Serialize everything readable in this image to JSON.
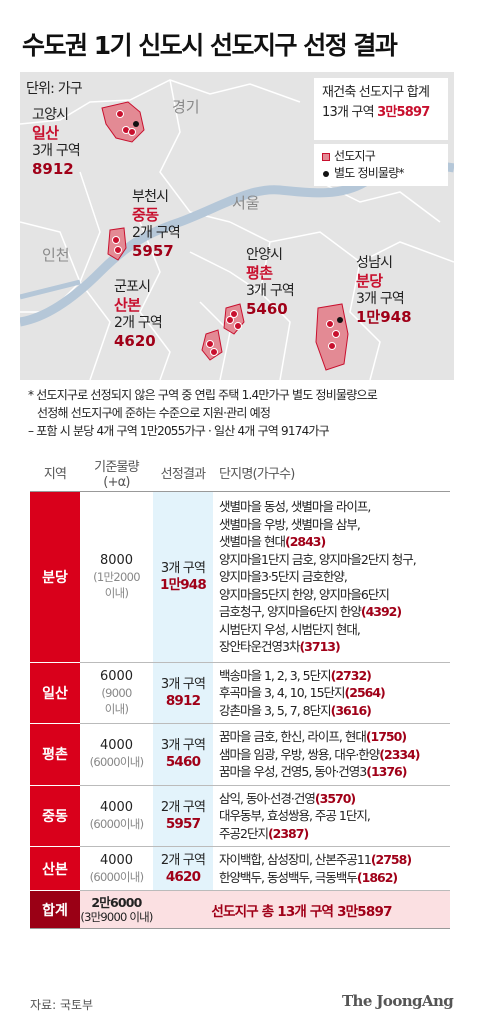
{
  "title": "수도권 1기 신도시 선도지구 선정 결과",
  "map": {
    "unit": "단위: 가구",
    "region_labels": {
      "gyeonggi": "경기",
      "seoul": "서울",
      "incheon": "인천"
    },
    "total_box": {
      "line1": "재건축 선도지구 합계",
      "line2_prefix": "13개 구역 ",
      "line2_value": "3만5897"
    },
    "legend": {
      "zone": "선도지구",
      "extra": "별도 정비물량*"
    },
    "cities": {
      "goyang": {
        "city": "고양시",
        "district": "일산",
        "zones": "3개 구역",
        "units": "8912"
      },
      "bucheon": {
        "city": "부천시",
        "district": "중동",
        "zones": "2개 구역",
        "units": "5957"
      },
      "anyang": {
        "city": "안양시",
        "district": "평촌",
        "zones": "3개 구역",
        "units": "5460"
      },
      "gunpo": {
        "city": "군포시",
        "district": "산본",
        "zones": "2개 구역",
        "units": "4620"
      },
      "seongnam": {
        "city": "성남시",
        "district": "분당",
        "zones": "3개 구역",
        "units": "1만948"
      }
    }
  },
  "notes": {
    "line1": "* 선도지구로 선정되지 않은 구역 중 연립 주택 1.4만가구 별도 정비물량으로",
    "line2": "선정해 선도지구에 준하는 수준으로 지원·관리 예정",
    "line3": "– 포함 시 분당 4개 구역 1만2055가구 · 일산 4개 구역 9174가구"
  },
  "table": {
    "headers": {
      "region": "지역",
      "base": "기준물량",
      "base_sub": "(+α)",
      "result": "선정결과",
      "complex": "단지명(가구수)"
    },
    "rows": [
      {
        "region": "분당",
        "base": "8000",
        "base_sub1": "(1만2000",
        "base_sub2": "이내)",
        "zones": "3개 구역",
        "units": "1만948",
        "lines": [
          {
            "t": "샛별마을 동성, 샛별마을 라이프,",
            "n": ""
          },
          {
            "t": "샛별마을 우방, 샛별마을 삼부,",
            "n": ""
          },
          {
            "t": "샛별마을 현대",
            "n": "(2843)"
          },
          {
            "t": "양지마을1단지 금호, 양지마을2단지 청구,",
            "n": ""
          },
          {
            "t": "양지마을3·5단지 금호한양,",
            "n": ""
          },
          {
            "t": "양지마을5단지 한양, 양지마을6단지",
            "n": ""
          },
          {
            "t": "금호청구, 양지마을6단지 한양",
            "n": "(4392)"
          },
          {
            "t": "시범단지 우성, 시범단지 현대,",
            "n": ""
          },
          {
            "t": "장안타운건영3차",
            "n": "(3713)"
          }
        ]
      },
      {
        "region": "일산",
        "base": "6000",
        "base_sub1": "(9000",
        "base_sub2": "이내)",
        "zones": "3개 구역",
        "units": "8912",
        "lines": [
          {
            "t": "백송마을 1, 2, 3, 5단지",
            "n": "(2732)"
          },
          {
            "t": "후곡마을 3, 4, 10, 15단지",
            "n": "(2564)"
          },
          {
            "t": "강촌마을 3, 5, 7, 8단지",
            "n": "(3616)"
          }
        ]
      },
      {
        "region": "평촌",
        "base": "4000",
        "base_sub1": "(6000이내)",
        "base_sub2": "",
        "zones": "3개 구역",
        "units": "5460",
        "lines": [
          {
            "t": "꿈마을 금호, 한신, 라이프, 현대",
            "n": "(1750)"
          },
          {
            "t": "샘마을 임광, 우방, 쌍용, 대우·한양",
            "n": "(2334)"
          },
          {
            "t": "꿈마을 우성, 건영5, 동아·건영3",
            "n": "(1376)"
          }
        ]
      },
      {
        "region": "중동",
        "base": "4000",
        "base_sub1": "(6000이내)",
        "base_sub2": "",
        "zones": "2개 구역",
        "units": "5957",
        "lines": [
          {
            "t": "삼익, 동아·선경·건영",
            "n": "(3570)"
          },
          {
            "t": "대우동부, 효성쌍용, 주공 1단지,",
            "n": ""
          },
          {
            "t": "주공2단지",
            "n": "(2387)"
          }
        ]
      },
      {
        "region": "산본",
        "base": "4000",
        "base_sub1": "(6000이내)",
        "base_sub2": "",
        "zones": "2개 구역",
        "units": "4620",
        "lines": [
          {
            "t": "자이백합, 삼성장미, 산본주공11",
            "n": "(2758)"
          },
          {
            "t": "한양백두, 동성백두, 극동백두",
            "n": "(1862)"
          }
        ]
      }
    ],
    "summary": {
      "label": "합계",
      "base": "2만6000",
      "base_sub": "(3만9000 이내)",
      "result": "선도지구 총 13개 구역 3만5897"
    }
  },
  "footer": {
    "source": "자료: 국토부",
    "brand": "The JoongAng"
  }
}
